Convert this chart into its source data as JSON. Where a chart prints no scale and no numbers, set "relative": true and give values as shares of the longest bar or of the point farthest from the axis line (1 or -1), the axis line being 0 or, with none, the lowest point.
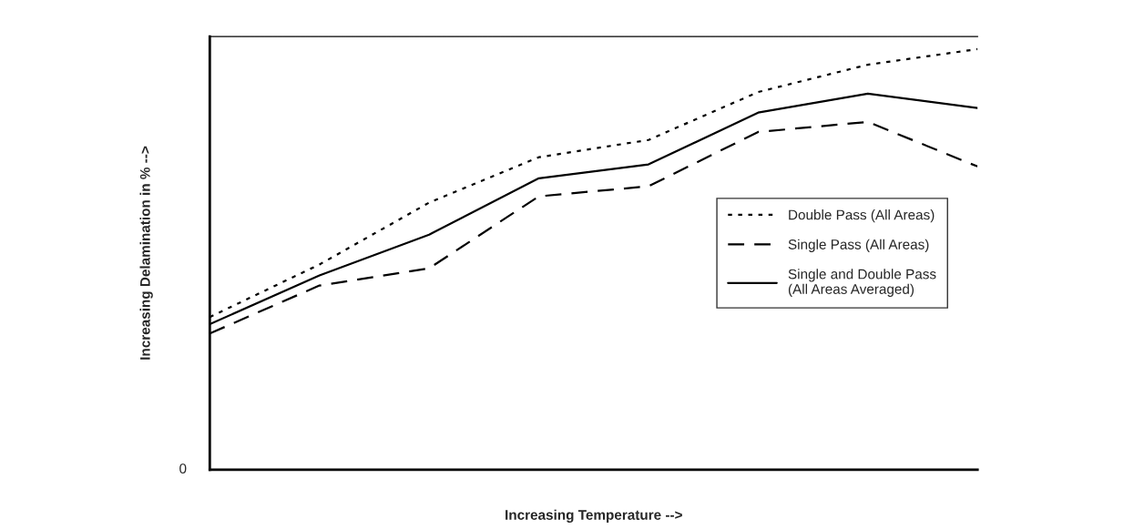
{
  "chart_data": {
    "type": "line",
    "relative": true,
    "xlabel": "Increasing Temperature -->",
    "ylabel": "Increasing Delamination in % -->",
    "annotations": [
      "0"
    ],
    "categories": [
      null,
      null,
      null,
      null,
      null,
      null,
      null,
      null
    ],
    "series": [
      {
        "name": "Double Pass (All Areas)",
        "color": "#000000",
        "line_style": "dotted",
        "values": [
          0.363,
          0.488,
          0.635,
          0.743,
          0.784,
          0.898,
          0.963,
          1.0
        ]
      },
      {
        "name": "Single Pass (All Areas)",
        "color": "#000000",
        "line_style": "dashed",
        "values": [
          0.324,
          0.438,
          0.479,
          0.65,
          0.674,
          0.803,
          0.827,
          0.721
        ]
      },
      {
        "name": "Single and Double Pass\n(All Areas Averaged)",
        "color": "#000000",
        "line_style": "solid",
        "values": [
          0.346,
          0.462,
          0.559,
          0.693,
          0.726,
          0.849,
          0.894,
          0.86
        ]
      }
    ],
    "legend": "right",
    "grid": false,
    "marker": "none"
  }
}
